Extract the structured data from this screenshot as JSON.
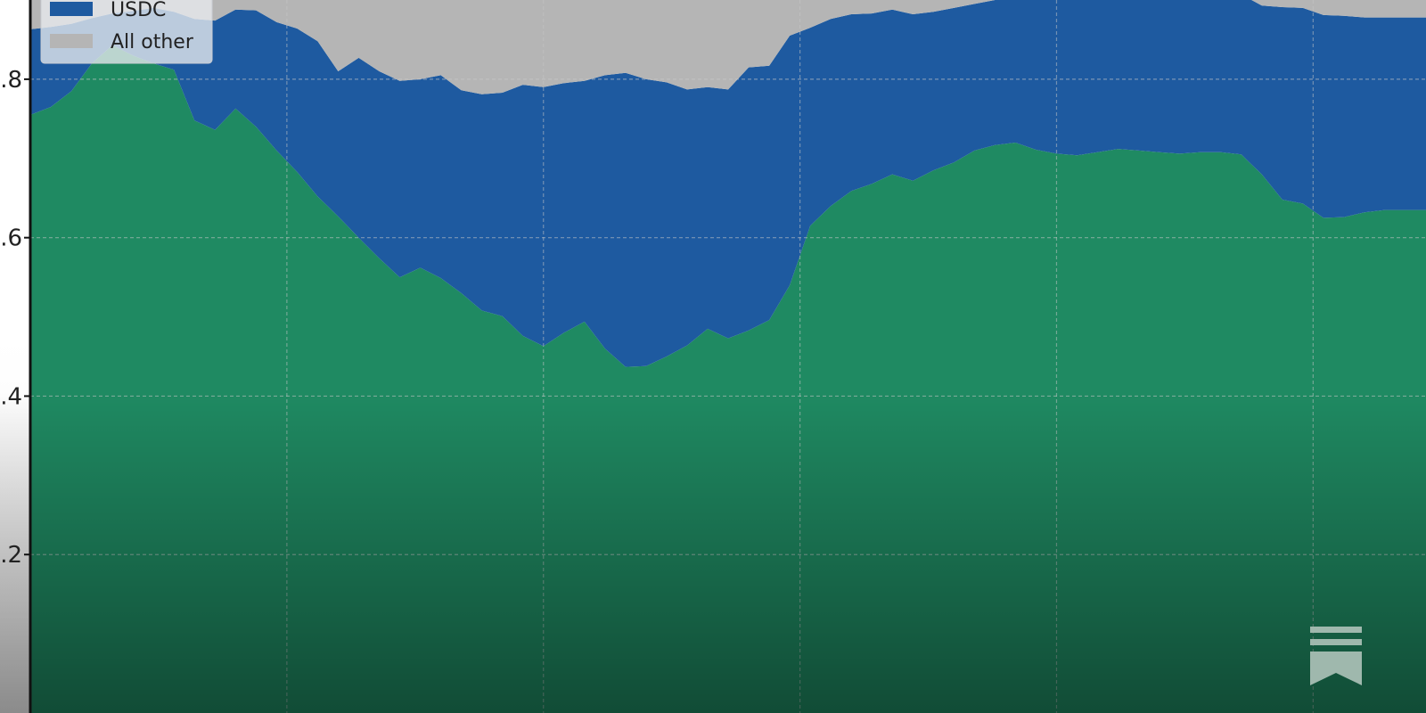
{
  "chart_data": {
    "type": "area",
    "stacked": true,
    "title": "",
    "xlabel": "",
    "ylabel": "",
    "ylim": [
      0.0,
      0.9
    ],
    "yticks": [
      0.2,
      0.4,
      0.6,
      0.8
    ],
    "ytick_labels": [
      ".2",
      ".4",
      ".6",
      ".8"
    ],
    "grid": true,
    "legend": {
      "placement": "top-left",
      "entries": [
        "USDC",
        "All other"
      ]
    },
    "x": [
      0,
      1,
      2,
      3,
      4,
      5,
      6,
      7,
      8,
      9,
      10,
      11,
      12,
      13,
      14,
      15,
      16,
      17,
      18,
      19,
      20,
      21,
      22,
      23,
      24,
      25,
      26,
      27,
      28,
      29,
      30,
      31,
      32,
      33,
      34,
      35,
      36,
      37,
      38,
      39,
      40,
      41,
      42,
      43,
      44,
      45,
      46,
      47,
      48,
      49,
      50,
      51,
      52,
      53,
      54,
      55,
      56,
      57,
      58,
      59,
      60,
      61,
      62,
      63,
      64,
      65,
      66,
      67,
      68
    ],
    "series": [
      {
        "name": "",
        "color": "#1f8a62",
        "cumulative_top": [
          0.755,
          0.765,
          0.785,
          0.82,
          0.843,
          0.83,
          0.82,
          0.812,
          0.748,
          0.736,
          0.763,
          0.74,
          0.71,
          0.683,
          0.652,
          0.627,
          0.6,
          0.574,
          0.55,
          0.562,
          0.549,
          0.53,
          0.508,
          0.501,
          0.476,
          0.463,
          0.48,
          0.494,
          0.46,
          0.437,
          0.438,
          0.45,
          0.464,
          0.485,
          0.473,
          0.483,
          0.496,
          0.54,
          0.615,
          0.64,
          0.659,
          0.668,
          0.68,
          0.672,
          0.685,
          0.695,
          0.71,
          0.717,
          0.72,
          0.711,
          0.706,
          0.704,
          0.708,
          0.712,
          0.71,
          0.708,
          0.706,
          0.708,
          0.708,
          0.705,
          0.68,
          0.648,
          0.643,
          0.625,
          0.626,
          0.632,
          0.635,
          0.635,
          0.635
        ]
      },
      {
        "name": "USDC",
        "color": "#1e5aa0",
        "cumulative_top": [
          0.863,
          0.866,
          0.87,
          0.877,
          0.883,
          0.886,
          0.89,
          0.885,
          0.876,
          0.874,
          0.888,
          0.887,
          0.872,
          0.864,
          0.848,
          0.81,
          0.827,
          0.81,
          0.798,
          0.8,
          0.805,
          0.786,
          0.781,
          0.783,
          0.793,
          0.79,
          0.795,
          0.798,
          0.805,
          0.808,
          0.8,
          0.796,
          0.787,
          0.79,
          0.787,
          0.815,
          0.817,
          0.855,
          0.865,
          0.876,
          0.882,
          0.883,
          0.888,
          0.882,
          0.885,
          0.89,
          0.895,
          0.9,
          0.908,
          0.904,
          0.914,
          0.903,
          0.904,
          0.906,
          0.908,
          0.907,
          0.906,
          0.905,
          0.905,
          0.907,
          0.893,
          0.891,
          0.89,
          0.881,
          0.88,
          0.878,
          0.878,
          0.878,
          0.878
        ]
      },
      {
        "name": "All other",
        "color": "#b5b5b5",
        "cumulative_top": 1.0
      }
    ]
  },
  "icons": {
    "bookmark": "bookmark-icon"
  }
}
